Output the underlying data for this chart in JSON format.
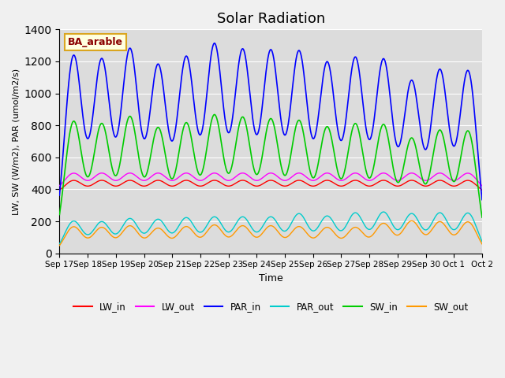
{
  "title": "Solar Radiation",
  "ylabel": "LW, SW (W/m2), PAR (umol/m2/s)",
  "xlabel": "Time",
  "annotation": "BA_arable",
  "ylim": [
    0,
    1400
  ],
  "colors": {
    "LW_in": "#ff0000",
    "LW_out": "#ff00ff",
    "PAR_in": "#0000ff",
    "PAR_out": "#00cccc",
    "SW_in": "#00cc00",
    "SW_out": "#ff9900"
  },
  "x_tick_labels": [
    "Sep 17",
    "Sep 18",
    "Sep 19",
    "Sep 20",
    "Sep 21",
    "Sep 22",
    "Sep 23",
    "Sep 24",
    "Sep 25",
    "Sep 26",
    "Sep 27",
    "Sep 28",
    "Sep 29",
    "Sep 30",
    "Oct 1",
    "Oct 2"
  ],
  "n_days": 15,
  "PAR_in_peaks": [
    1230,
    1200,
    1265,
    1165,
    1215,
    1295,
    1260,
    1255,
    1250,
    1180,
    1210,
    1200,
    1065,
    1135,
    1135
  ],
  "SW_in_peaks": [
    820,
    800,
    845,
    775,
    805,
    855,
    840,
    830,
    820,
    780,
    800,
    795,
    710,
    760,
    760
  ],
  "SW_out_peaks": [
    165,
    160,
    170,
    155,
    165,
    175,
    170,
    170,
    165,
    160,
    160,
    185,
    200,
    195,
    195
  ],
  "PAR_out_peaks": [
    200,
    195,
    215,
    210,
    220,
    225,
    225,
    225,
    245,
    230,
    250,
    255,
    245,
    250,
    250
  ],
  "LW_in_base": 370,
  "LW_out_base": 390,
  "LW_in_peak_add": 85,
  "LW_out_peak_add": 110,
  "pts_per_day": 144
}
